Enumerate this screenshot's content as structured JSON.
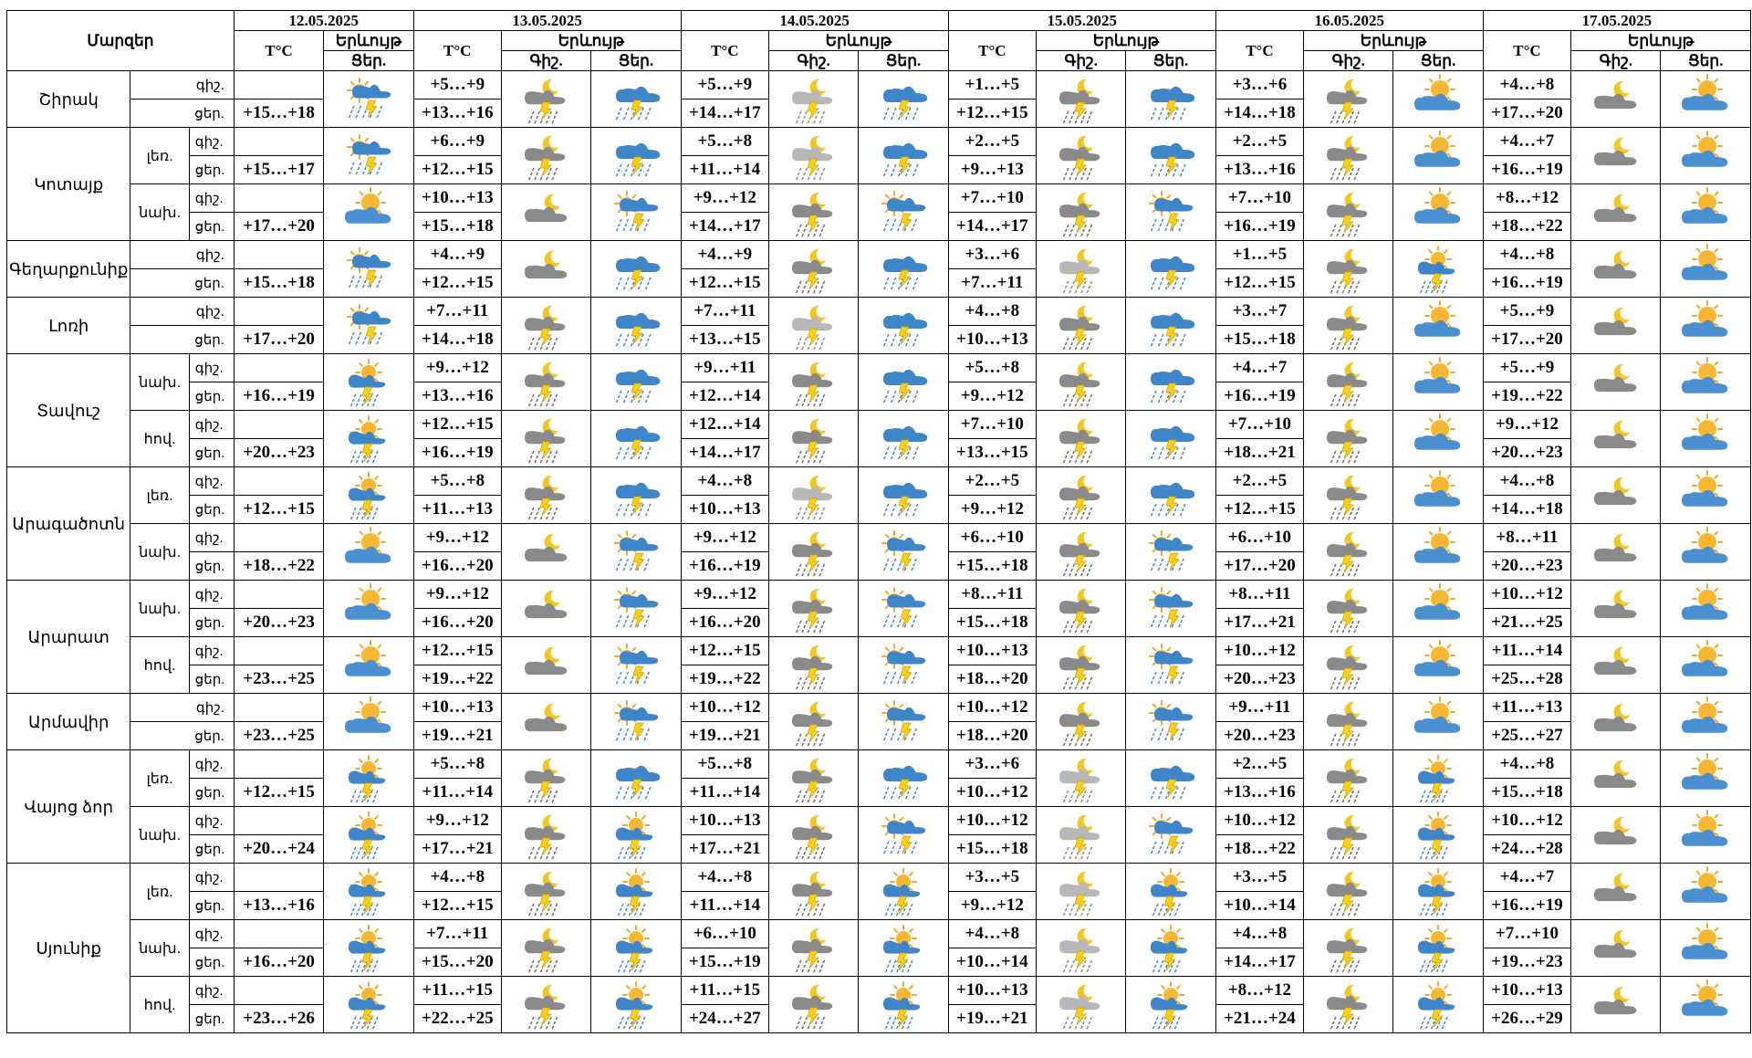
{
  "header": {
    "region_label": "Մարզեր",
    "temp_label": "T°C",
    "phenomenon_label": "Երևույթ",
    "night_label": "Գիշ.",
    "day_label": "Ցեր."
  },
  "dates": [
    "12.05.2025",
    "13.05.2025",
    "14.05.2025",
    "15.05.2025",
    "16.05.2025",
    "17.05.2025"
  ],
  "icon_legend": {
    "A": "sun-cloud-thunder-rain-icon",
    "B": "sun-cloud-rain-icon",
    "C": "sun-blue-cloud-icon",
    "D": "moon-grey-cloud-thunder-rain-icon",
    "E": "moon-grey-cloud-icon",
    "F": "moon-light-cloud-rain-icon",
    "G": "moon-blue-cloud-thunder-rain-icon",
    "H": "blue-cloud-thunder-rain-icon"
  },
  "regions": [
    {
      "name": "Շիրակ",
      "subzones": [
        {
          "zone": "",
          "rows": [
            {
              "period": "գիշ.",
              "temps": [
                "",
                "+5…+9",
                "+5…+9",
                "+1…+5",
                "+3…+6",
                "+4…+8"
              ]
            },
            {
              "period": "ցեր.",
              "temps": [
                "+15…+18",
                "+13…+16",
                "+14…+17",
                "+12…+15",
                "+14…+18",
                "+17…+20"
              ]
            }
          ],
          "icons": [
            [
              "A"
            ],
            [
              "D",
              "H"
            ],
            [
              "F",
              "H"
            ],
            [
              "D",
              "H"
            ],
            [
              "D",
              "C"
            ],
            [
              "E",
              "C"
            ]
          ]
        }
      ]
    },
    {
      "name": "Կոտայք",
      "subzones": [
        {
          "zone": "լեռ.",
          "rows": [
            {
              "period": "գիշ.",
              "temps": [
                "",
                "+6…+9",
                "+5…+8",
                "+2…+5",
                "+2…+5",
                "+4…+7"
              ]
            },
            {
              "period": "ցեր.",
              "temps": [
                "+15…+17",
                "+12…+15",
                "+11…+14",
                "+9…+13",
                "+13…+16",
                "+16…+19"
              ]
            }
          ],
          "icons": [
            [
              "A"
            ],
            [
              "D",
              "H"
            ],
            [
              "F",
              "H"
            ],
            [
              "D",
              "H"
            ],
            [
              "D",
              "C"
            ],
            [
              "E",
              "C"
            ]
          ]
        },
        {
          "zone": "նախ.",
          "rows": [
            {
              "period": "գիշ.",
              "temps": [
                "",
                "+10…+13",
                "+9…+12",
                "+7…+10",
                "+7…+10",
                "+8…+12"
              ]
            },
            {
              "period": "ցեր.",
              "temps": [
                "+17…+20",
                "+15…+18",
                "+14…+17",
                "+14…+17",
                "+16…+19",
                "+18…+22"
              ]
            }
          ],
          "icons": [
            [
              "C"
            ],
            [
              "E",
              "A"
            ],
            [
              "D",
              "A"
            ],
            [
              "D",
              "A"
            ],
            [
              "D",
              "C"
            ],
            [
              "E",
              "C"
            ]
          ]
        }
      ]
    },
    {
      "name": "Գեղարքունիք",
      "subzones": [
        {
          "zone": "",
          "rows": [
            {
              "period": "գիշ.",
              "temps": [
                "",
                "+4…+9",
                "+4…+9",
                "+3…+6",
                "+1…+5",
                "+4…+8"
              ]
            },
            {
              "period": "ցեր.",
              "temps": [
                "+15…+18",
                "+12…+15",
                "+12…+15",
                "+7…+11",
                "+12…+15",
                "+16…+19"
              ]
            }
          ],
          "icons": [
            [
              "A"
            ],
            [
              "E",
              "H"
            ],
            [
              "D",
              "H"
            ],
            [
              "F",
              "H"
            ],
            [
              "D",
              "B"
            ],
            [
              "E",
              "C"
            ]
          ]
        }
      ]
    },
    {
      "name": "Լոռի",
      "subzones": [
        {
          "zone": "",
          "rows": [
            {
              "period": "գիշ.",
              "temps": [
                "",
                "+7…+11",
                "+7…+11",
                "+4…+8",
                "+3…+7",
                "+5…+9"
              ]
            },
            {
              "period": "ցեր.",
              "temps": [
                "+17…+20",
                "+14…+18",
                "+13…+15",
                "+10…+13",
                "+15…+18",
                "+17…+20"
              ]
            }
          ],
          "icons": [
            [
              "A"
            ],
            [
              "D",
              "H"
            ],
            [
              "F",
              "H"
            ],
            [
              "D",
              "H"
            ],
            [
              "D",
              "C"
            ],
            [
              "E",
              "C"
            ]
          ]
        }
      ]
    },
    {
      "name": "Տավուշ",
      "subzones": [
        {
          "zone": "նախ.",
          "rows": [
            {
              "period": "գիշ.",
              "temps": [
                "",
                "+9…+12",
                "+9…+11",
                "+5…+8",
                "+4…+7",
                "+5…+9"
              ]
            },
            {
              "period": "ցեր.",
              "temps": [
                "+16…+19",
                "+13…+16",
                "+12…+14",
                "+9…+12",
                "+16…+19",
                "+19…+22"
              ]
            }
          ],
          "icons": [
            [
              "B"
            ],
            [
              "D",
              "H"
            ],
            [
              "D",
              "H"
            ],
            [
              "D",
              "H"
            ],
            [
              "D",
              "C"
            ],
            [
              "E",
              "C"
            ]
          ]
        },
        {
          "zone": "հով.",
          "rows": [
            {
              "period": "գիշ.",
              "temps": [
                "",
                "+12…+15",
                "+12…+14",
                "+7…+10",
                "+7…+10",
                "+9…+12"
              ]
            },
            {
              "period": "ցեր.",
              "temps": [
                "+20…+23",
                "+16…+19",
                "+14…+17",
                "+13…+15",
                "+18…+21",
                "+20…+23"
              ]
            }
          ],
          "icons": [
            [
              "B"
            ],
            [
              "D",
              "H"
            ],
            [
              "D",
              "H"
            ],
            [
              "D",
              "H"
            ],
            [
              "D",
              "C"
            ],
            [
              "E",
              "C"
            ]
          ]
        }
      ]
    },
    {
      "name": "Արագածոտն",
      "subzones": [
        {
          "zone": "լեռ.",
          "rows": [
            {
              "period": "գիշ.",
              "temps": [
                "",
                "+5…+8",
                "+4…+8",
                "+2…+5",
                "+2…+5",
                "+4…+8"
              ]
            },
            {
              "period": "ցեր.",
              "temps": [
                "+12…+15",
                "+11…+13",
                "+10…+13",
                "+9…+12",
                "+12…+15",
                "+14…+18"
              ]
            }
          ],
          "icons": [
            [
              "B"
            ],
            [
              "D",
              "H"
            ],
            [
              "F",
              "H"
            ],
            [
              "D",
              "H"
            ],
            [
              "D",
              "C"
            ],
            [
              "E",
              "C"
            ]
          ]
        },
        {
          "zone": "նախ.",
          "rows": [
            {
              "period": "գիշ.",
              "temps": [
                "",
                "+9…+12",
                "+9…+12",
                "+6…+10",
                "+6…+10",
                "+8…+11"
              ]
            },
            {
              "period": "ցեր.",
              "temps": [
                "+18…+22",
                "+16…+20",
                "+16…+19",
                "+15…+18",
                "+17…+20",
                "+20…+23"
              ]
            }
          ],
          "icons": [
            [
              "C"
            ],
            [
              "E",
              "A"
            ],
            [
              "D",
              "A"
            ],
            [
              "D",
              "A"
            ],
            [
              "D",
              "C"
            ],
            [
              "E",
              "C"
            ]
          ]
        }
      ]
    },
    {
      "name": "Արարատ",
      "subzones": [
        {
          "zone": "նախ.",
          "rows": [
            {
              "period": "գիշ.",
              "temps": [
                "",
                "+9…+12",
                "+9…+12",
                "+8…+11",
                "+8…+11",
                "+10…+12"
              ]
            },
            {
              "period": "ցեր.",
              "temps": [
                "+20…+23",
                "+16…+20",
                "+16…+20",
                "+15…+18",
                "+17…+21",
                "+21…+25"
              ]
            }
          ],
          "icons": [
            [
              "C"
            ],
            [
              "E",
              "A"
            ],
            [
              "D",
              "A"
            ],
            [
              "D",
              "A"
            ],
            [
              "D",
              "C"
            ],
            [
              "E",
              "C"
            ]
          ]
        },
        {
          "zone": "հով.",
          "rows": [
            {
              "period": "գիշ.",
              "temps": [
                "",
                "+12…+15",
                "+12…+15",
                "+10…+13",
                "+10…+12",
                "+11…+14"
              ]
            },
            {
              "period": "ցեր.",
              "temps": [
                "+23…+25",
                "+19…+22",
                "+19…+22",
                "+18…+20",
                "+20…+23",
                "+25…+28"
              ]
            }
          ],
          "icons": [
            [
              "C"
            ],
            [
              "E",
              "A"
            ],
            [
              "D",
              "A"
            ],
            [
              "D",
              "A"
            ],
            [
              "D",
              "C"
            ],
            [
              "E",
              "C"
            ]
          ]
        }
      ]
    },
    {
      "name": "Արմավիր",
      "subzones": [
        {
          "zone": "",
          "rows": [
            {
              "period": "գիշ.",
              "temps": [
                "",
                "+10…+13",
                "+10…+12",
                "+10…+12",
                "+9…+11",
                "+11…+13"
              ]
            },
            {
              "period": "ցեր.",
              "temps": [
                "+23…+25",
                "+19…+21",
                "+19…+21",
                "+18…+20",
                "+20…+23",
                "+25…+27"
              ]
            }
          ],
          "icons": [
            [
              "C"
            ],
            [
              "E",
              "A"
            ],
            [
              "D",
              "A"
            ],
            [
              "D",
              "A"
            ],
            [
              "D",
              "C"
            ],
            [
              "E",
              "C"
            ]
          ]
        }
      ]
    },
    {
      "name": "Վայոց ձոր",
      "subzones": [
        {
          "zone": "լեռ.",
          "rows": [
            {
              "period": "գիշ.",
              "temps": [
                "",
                "+5…+8",
                "+5…+8",
                "+3…+6",
                "+2…+5",
                "+4…+8"
              ]
            },
            {
              "period": "ցեր.",
              "temps": [
                "+12…+15",
                "+11…+14",
                "+11…+14",
                "+10…+12",
                "+13…+16",
                "+15…+18"
              ]
            }
          ],
          "icons": [
            [
              "B"
            ],
            [
              "D",
              "H"
            ],
            [
              "D",
              "H"
            ],
            [
              "F",
              "H"
            ],
            [
              "D",
              "B"
            ],
            [
              "E",
              "C"
            ]
          ]
        },
        {
          "zone": "նախ.",
          "rows": [
            {
              "period": "գիշ.",
              "temps": [
                "",
                "+9…+12",
                "+10…+13",
                "+10…+12",
                "+10…+12",
                "+10…+12"
              ]
            },
            {
              "period": "ցեր.",
              "temps": [
                "+20…+24",
                "+17…+21",
                "+17…+21",
                "+15…+18",
                "+18…+22",
                "+24…+28"
              ]
            }
          ],
          "icons": [
            [
              "B"
            ],
            [
              "D",
              "B"
            ],
            [
              "D",
              "A"
            ],
            [
              "F",
              "A"
            ],
            [
              "D",
              "B"
            ],
            [
              "E",
              "C"
            ]
          ]
        }
      ]
    },
    {
      "name": "Սյունիք",
      "subzones": [
        {
          "zone": "լեռ.",
          "rows": [
            {
              "period": "գիշ.",
              "temps": [
                "",
                "+4…+8",
                "+4…+8",
                "+3…+5",
                "+3…+5",
                "+4…+7"
              ]
            },
            {
              "period": "ցեր.",
              "temps": [
                "+13…+16",
                "+12…+15",
                "+11…+14",
                "+9…+12",
                "+10…+14",
                "+16…+19"
              ]
            }
          ],
          "icons": [
            [
              "B"
            ],
            [
              "D",
              "B"
            ],
            [
              "D",
              "B"
            ],
            [
              "F",
              "B"
            ],
            [
              "D",
              "B"
            ],
            [
              "E",
              "C"
            ]
          ]
        },
        {
          "zone": "նախ.",
          "rows": [
            {
              "period": "գիշ.",
              "temps": [
                "",
                "+7…+11",
                "+6…+10",
                "+4…+8",
                "+4…+8",
                "+7…+10"
              ]
            },
            {
              "period": "ցեր.",
              "temps": [
                "+16…+20",
                "+15…+20",
                "+15…+19",
                "+10…+14",
                "+14…+17",
                "+19…+23"
              ]
            }
          ],
          "icons": [
            [
              "B"
            ],
            [
              "D",
              "B"
            ],
            [
              "D",
              "B"
            ],
            [
              "F",
              "B"
            ],
            [
              "D",
              "B"
            ],
            [
              "E",
              "C"
            ]
          ]
        },
        {
          "zone": "հով.",
          "rows": [
            {
              "period": "գիշ.",
              "temps": [
                "",
                "+11…+15",
                "+11…+15",
                "+10…+13",
                "+8…+12",
                "+10…+13"
              ]
            },
            {
              "period": "ցեր.",
              "temps": [
                "+23…+26",
                "+22…+25",
                "+24…+27",
                "+19…+21",
                "+21…+24",
                "+26…+29"
              ]
            }
          ],
          "icons": [
            [
              "B"
            ],
            [
              "D",
              "B"
            ],
            [
              "D",
              "B"
            ],
            [
              "F",
              "B"
            ],
            [
              "D",
              "B"
            ],
            [
              "E",
              "C"
            ]
          ]
        }
      ]
    }
  ]
}
